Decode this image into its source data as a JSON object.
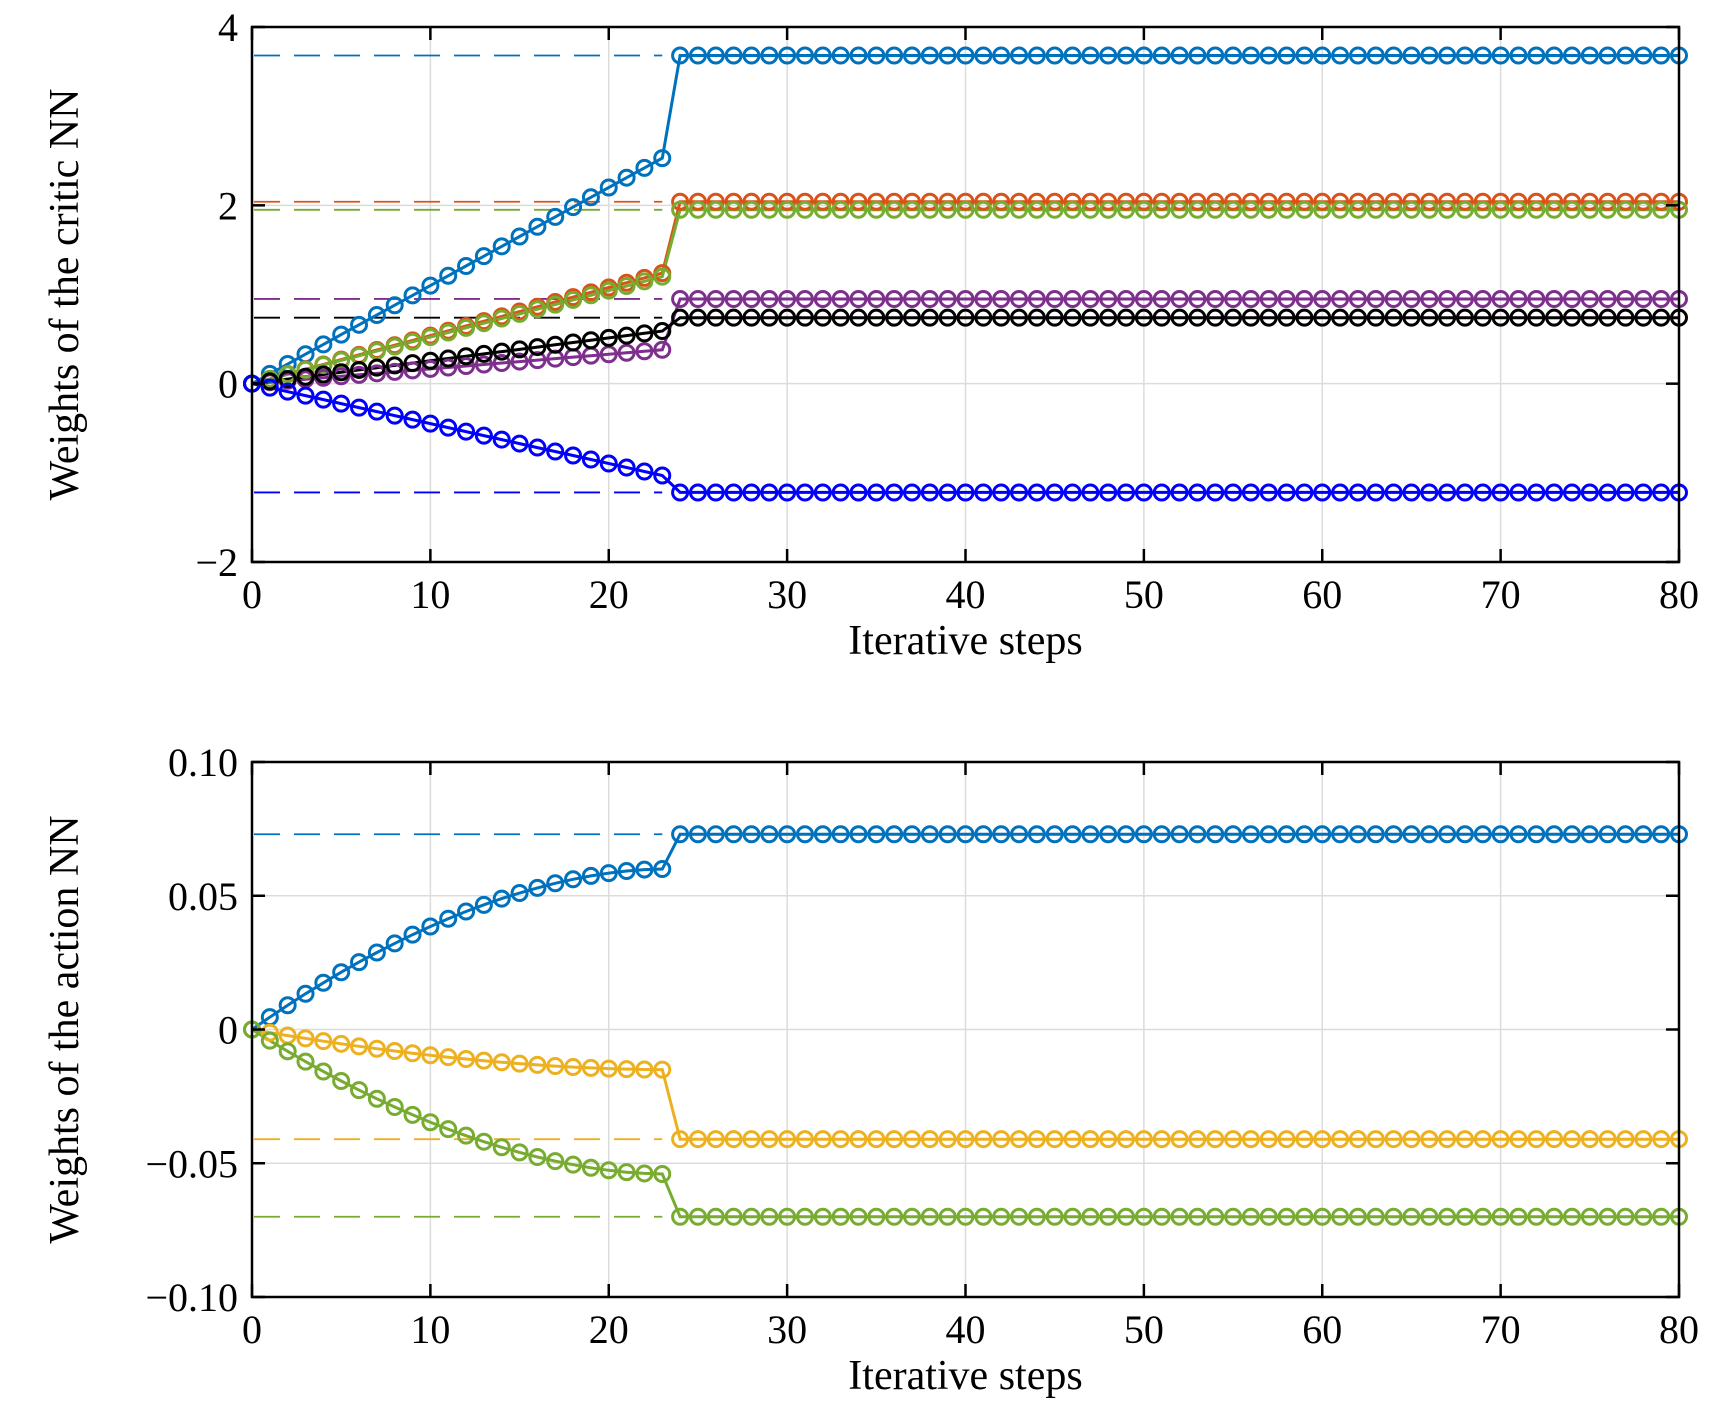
{
  "chart_data": [
    {
      "type": "line",
      "title": "",
      "xlabel": "Iterative steps",
      "ylabel": "Weights of the critic NN",
      "xlim": [
        0,
        80
      ],
      "ylim": [
        -2,
        4
      ],
      "xticks": [
        0,
        10,
        20,
        30,
        40,
        50,
        60,
        70,
        80
      ],
      "yticks": [
        -2,
        0,
        2,
        4
      ],
      "ytick_labels": [
        "−2",
        "0",
        "2",
        "4"
      ],
      "grid": true,
      "marker": "circle",
      "switch_step": 24,
      "series": [
        {
          "color": "#0072BD",
          "start": 0,
          "slope": 0.11,
          "pre_final": 2.53,
          "final": 3.68
        },
        {
          "color": "#D95319",
          "start": 0,
          "slope": 0.054,
          "pre_final": 1.24,
          "final": 2.04
        },
        {
          "color": "#77AC30",
          "start": 0,
          "slope": 0.052,
          "pre_final": 1.2,
          "final": 1.95
        },
        {
          "color": "#7E2F8E",
          "start": 0,
          "slope": 0.016,
          "pre_final": 0.38,
          "final": 0.95
        },
        {
          "color": "#000000",
          "start": 0,
          "slope": 0.025,
          "pre_final": 0.59,
          "final": 0.74
        },
        {
          "color": "#0000FF",
          "start": 0,
          "slope": -0.045,
          "pre_final": -1.03,
          "final": -1.22
        }
      ]
    },
    {
      "type": "line",
      "title": "",
      "xlabel": "Iterative steps",
      "ylabel": "Weights of the action NN",
      "xlim": [
        0,
        80
      ],
      "ylim": [
        -0.1,
        0.1
      ],
      "xticks": [
        0,
        10,
        20,
        30,
        40,
        50,
        60,
        70,
        80
      ],
      "yticks": [
        -0.1,
        -0.05,
        0,
        0.05,
        0.1
      ],
      "ytick_labels": [
        "−0.10",
        "−0.05",
        "0",
        "0.05",
        "0.10"
      ],
      "grid": true,
      "marker": "circle",
      "switch_step": 24,
      "series": [
        {
          "color": "#0072BD",
          "start": 0,
          "slope": 0.0045,
          "pre_final": 0.06,
          "final": 0.073
        },
        {
          "color": "#EDB120",
          "start": 0,
          "slope": -0.0004,
          "pre_final": -0.015,
          "final": -0.041
        },
        {
          "color": "#77AC30",
          "start": 0,
          "slope": -0.0072,
          "pre_final": -0.054,
          "final": -0.07
        }
      ]
    }
  ]
}
